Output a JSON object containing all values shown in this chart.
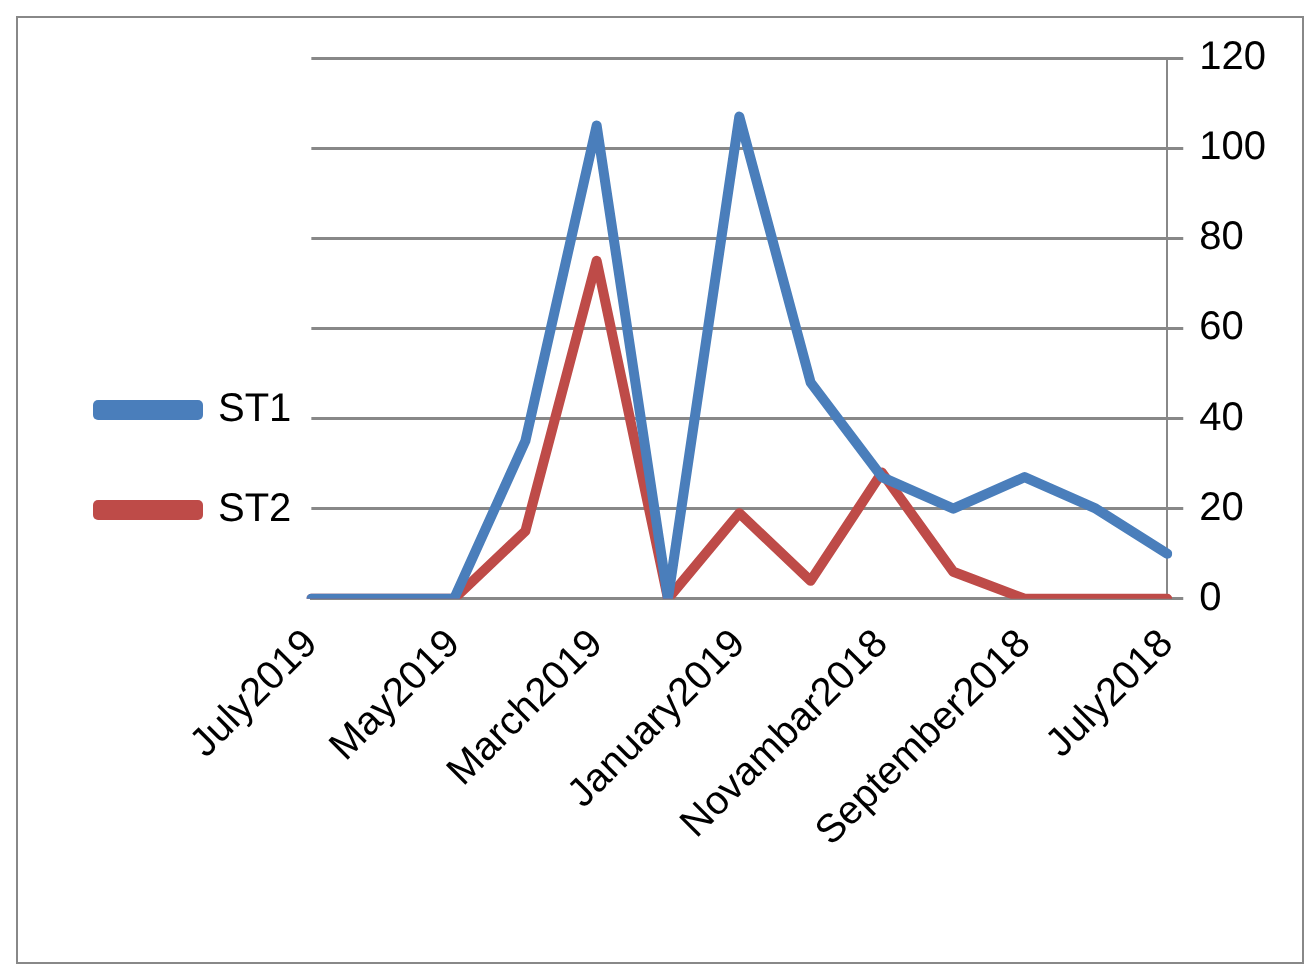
{
  "chart_data": {
    "type": "line",
    "categories": [
      "July2019",
      null,
      "May2019",
      null,
      "March2019",
      null,
      "January2019",
      null,
      "Novambar2018",
      null,
      "September2018",
      null,
      "July2018"
    ],
    "series": [
      {
        "name": "ST1",
        "color": "#4a7ebb",
        "values": [
          0,
          0,
          0,
          35,
          105,
          0,
          107,
          48,
          27,
          20,
          27,
          20,
          10
        ]
      },
      {
        "name": "ST2",
        "color": "#be4b48",
        "values": [
          0,
          0,
          0,
          15,
          75,
          0,
          19,
          4,
          28,
          6,
          0,
          0,
          0
        ]
      }
    ],
    "ylim": [
      0,
      120
    ],
    "yticks": [
      0,
      20,
      40,
      60,
      80,
      100,
      120
    ],
    "grid": "y",
    "legend": "left",
    "marker": "none",
    "line_style": "solid"
  }
}
